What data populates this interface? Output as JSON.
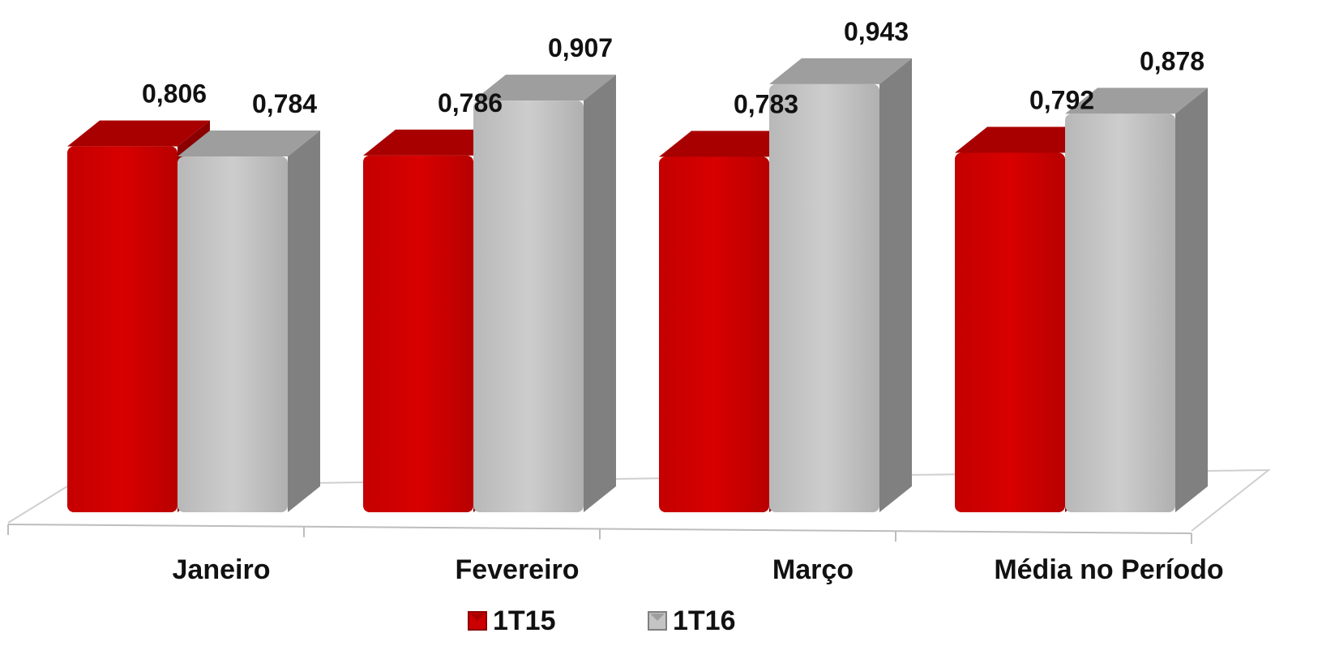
{
  "chart_data": {
    "type": "bar",
    "categories": [
      "Janeiro",
      "Fevereiro",
      "Março",
      "Média no Período"
    ],
    "series": [
      {
        "name": "1T15",
        "values": [
          0.806,
          0.786,
          0.783,
          0.792
        ],
        "labels": [
          "0,806",
          "0,786",
          "0,783",
          "0,792"
        ]
      },
      {
        "name": "1T16",
        "values": [
          0.784,
          0.907,
          0.943,
          0.878
        ],
        "labels": [
          "0,784",
          "0,907",
          "0,943",
          "0,878"
        ]
      }
    ],
    "ylim": [
      0,
      1.0
    ],
    "grid": false,
    "legend": "bottom",
    "style": "3d",
    "colors": {
      "1T15": {
        "front": "#cc0000",
        "side": "#8a0000",
        "top": "#a80000"
      },
      "1T16": {
        "front": "#c4c4c4",
        "side": "#808080",
        "top": "#9e9e9e"
      }
    }
  }
}
